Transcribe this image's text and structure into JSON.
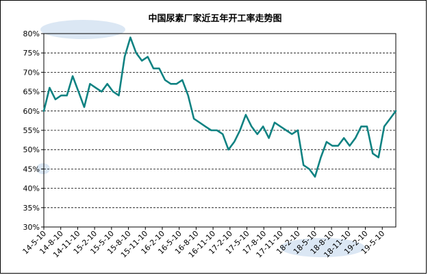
{
  "chart_data": {
    "type": "line",
    "title": "中国尿素厂家近五年开工率走势图",
    "xlabel": "",
    "ylabel": "",
    "ylim": [
      30,
      80
    ],
    "yticks": [
      "30%",
      "35%",
      "40%",
      "45%",
      "50%",
      "55%",
      "60%",
      "65%",
      "70%",
      "75%",
      "80%"
    ],
    "grid": "horizontal-dashed",
    "legend": "none",
    "line_color": "#0f8282",
    "x_tick_labels": [
      "14-5-10",
      "14-8-10",
      "14-11-10",
      "15-2-10",
      "15-5-10",
      "15-8-10",
      "15-11-10",
      "16-2-10",
      "16-5-10",
      "16-8-10",
      "16-11-10",
      "17-2-10",
      "17-5-10",
      "17-8-10",
      "17-11-10",
      "18-2-10",
      "18-5-10",
      "18-8-10",
      "18-11-10",
      "19-2-10",
      "19-5-10"
    ],
    "series": [
      {
        "name": "",
        "x": [
          "14-5-10",
          "14-6-10",
          "14-7-10",
          "14-8-10",
          "14-9-10",
          "14-10-10",
          "14-11-10",
          "14-12-10",
          "15-1-10",
          "15-2-10",
          "15-3-10",
          "15-4-10",
          "15-5-10",
          "15-6-10",
          "15-7-10",
          "15-8-10",
          "15-9-10",
          "15-10-10",
          "15-11-10",
          "15-12-10",
          "16-1-10",
          "16-2-10",
          "16-3-10",
          "16-4-10",
          "16-5-10",
          "16-6-10",
          "16-7-10",
          "16-8-10",
          "16-9-10",
          "16-10-10",
          "16-11-10",
          "16-12-10",
          "17-1-10",
          "17-2-10",
          "17-3-10",
          "17-4-10",
          "17-5-10",
          "17-6-10",
          "17-7-10",
          "17-8-10",
          "17-9-10",
          "17-10-10",
          "17-11-10",
          "17-12-10",
          "18-1-10",
          "18-2-10",
          "18-3-10",
          "18-4-10",
          "18-5-10",
          "18-6-10",
          "18-7-10",
          "18-8-10",
          "18-9-10",
          "18-10-10",
          "18-11-10",
          "18-12-10",
          "19-1-10",
          "19-2-10",
          "19-3-10",
          "19-4-10",
          "19-5-10",
          "19-6-10"
        ],
        "values": [
          60,
          66,
          63,
          64,
          64,
          69,
          65,
          61,
          67,
          66,
          65,
          67,
          65,
          64,
          74,
          79,
          75,
          73,
          74,
          71,
          71,
          68,
          67,
          67,
          68,
          64,
          58,
          57,
          56,
          55,
          55,
          54,
          50,
          52,
          55,
          59,
          56,
          54,
          56,
          53,
          57,
          56,
          55,
          54,
          55,
          46,
          45,
          43,
          48,
          52,
          51,
          51,
          53,
          51,
          53,
          56,
          56,
          49,
          48,
          56,
          58,
          60
        ]
      }
    ]
  }
}
